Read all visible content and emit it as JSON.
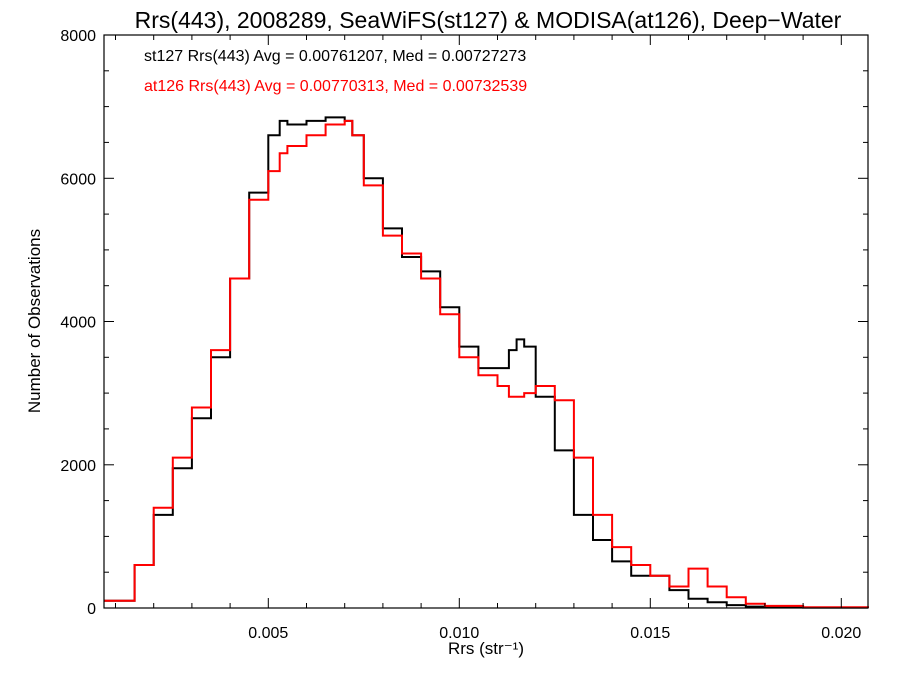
{
  "chart_data": {
    "type": "line",
    "step": true,
    "title": "Rrs(443), 2008289, SeaWiFS(st127) & MODISA(at126), Deep−Water",
    "xlabel": "Rrs (str⁻¹)",
    "ylabel": "Number of Observations",
    "xlim": [
      0.0007,
      0.0207
    ],
    "ylim": [
      0,
      8000
    ],
    "xticks": [
      0.005,
      0.01,
      0.015,
      0.02
    ],
    "xtick_labels": [
      "0.005",
      "0.010",
      "0.015",
      "0.020"
    ],
    "yticks": [
      0,
      2000,
      4000,
      6000,
      8000
    ],
    "ytick_labels": [
      "0",
      "2000",
      "4000",
      "6000",
      "8000"
    ],
    "grid": false,
    "legend_position": "top-left",
    "legend": [
      "st127 Rrs(443) Avg = 0.00761207, Med = 0.00727273",
      "at126 Rrs(443) Avg = 0.00770313, Med = 0.00732539"
    ],
    "series": [
      {
        "name": "st127",
        "color": "#000000",
        "x": [
          0.0007,
          0.0015,
          0.002,
          0.0025,
          0.003,
          0.0035,
          0.004,
          0.0045,
          0.005,
          0.0053,
          0.0055,
          0.006,
          0.0065,
          0.007,
          0.0072,
          0.0075,
          0.008,
          0.0085,
          0.009,
          0.0095,
          0.01,
          0.0105,
          0.011,
          0.0113,
          0.0115,
          0.0117,
          0.012,
          0.0125,
          0.013,
          0.0135,
          0.014,
          0.0145,
          0.015,
          0.0155,
          0.016,
          0.0165,
          0.017,
          0.0175,
          0.018,
          0.019,
          0.0207
        ],
        "y": [
          100,
          600,
          1300,
          1950,
          2650,
          3500,
          4600,
          5800,
          6600,
          6800,
          6750,
          6800,
          6850,
          6800,
          6600,
          6000,
          5300,
          4900,
          4700,
          4200,
          3650,
          3350,
          3350,
          3600,
          3750,
          3650,
          2950,
          2200,
          1300,
          950,
          650,
          450,
          450,
          250,
          130,
          80,
          40,
          20,
          10,
          5,
          0
        ]
      },
      {
        "name": "at126",
        "color": "#ff0000",
        "x": [
          0.0007,
          0.0015,
          0.002,
          0.0025,
          0.003,
          0.0035,
          0.004,
          0.0045,
          0.005,
          0.0053,
          0.0055,
          0.006,
          0.0065,
          0.007,
          0.0072,
          0.0075,
          0.008,
          0.0085,
          0.009,
          0.0095,
          0.01,
          0.0105,
          0.011,
          0.0113,
          0.0115,
          0.0117,
          0.012,
          0.0125,
          0.013,
          0.0135,
          0.014,
          0.0145,
          0.015,
          0.0155,
          0.016,
          0.0165,
          0.017,
          0.0175,
          0.018,
          0.019,
          0.0207
        ],
        "y": [
          100,
          600,
          1400,
          2100,
          2800,
          3600,
          4600,
          5700,
          6100,
          6350,
          6450,
          6600,
          6750,
          6800,
          6600,
          5900,
          5200,
          4950,
          4600,
          4100,
          3500,
          3250,
          3100,
          2950,
          2950,
          3000,
          3100,
          2900,
          2100,
          1300,
          850,
          600,
          450,
          300,
          550,
          300,
          150,
          60,
          30,
          10,
          0
        ]
      }
    ]
  }
}
